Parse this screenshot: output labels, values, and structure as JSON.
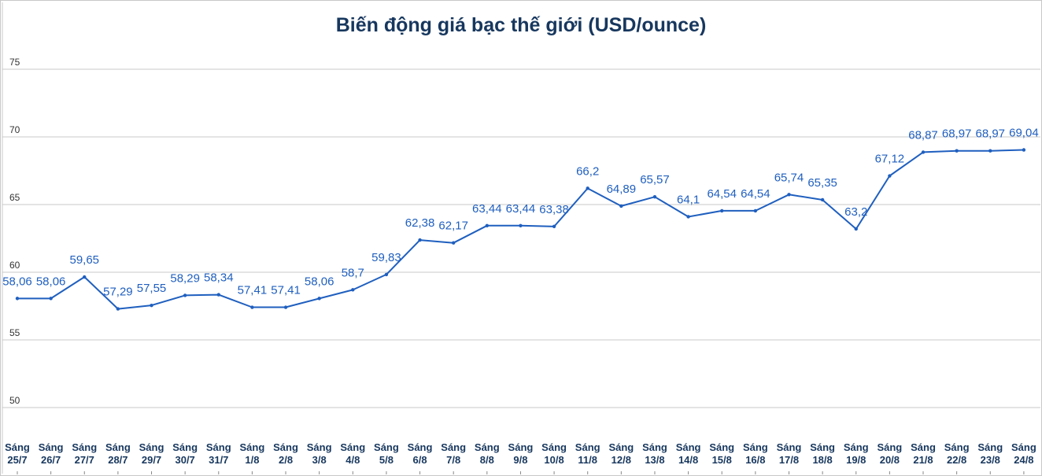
{
  "chart_data": {
    "type": "line",
    "title": "Biến động giá bạc thế giới (USD/ounce)",
    "xlabel": "",
    "ylabel": "",
    "ylim": [
      50,
      75
    ],
    "yticks": [
      50,
      55,
      60,
      65,
      70,
      75
    ],
    "grid": true,
    "line_color": "#1f5fbf",
    "categories": [
      [
        "Sáng",
        "25/7"
      ],
      [
        "Sáng",
        "26/7"
      ],
      [
        "Sáng",
        "27/7"
      ],
      [
        "Sáng",
        "28/7"
      ],
      [
        "Sáng",
        "29/7"
      ],
      [
        "Sáng",
        "30/7"
      ],
      [
        "Sáng",
        "31/7"
      ],
      [
        "Sáng",
        "1/8"
      ],
      [
        "Sáng",
        "2/8"
      ],
      [
        "Sáng",
        "3/8"
      ],
      [
        "Sáng",
        "4/8"
      ],
      [
        "Sáng",
        "5/8"
      ],
      [
        "Sáng",
        "6/8"
      ],
      [
        "Sáng",
        "7/8"
      ],
      [
        "Sáng",
        "8/8"
      ],
      [
        "Sáng",
        "9/8"
      ],
      [
        "Sáng",
        "10/8"
      ],
      [
        "Sáng",
        "11/8"
      ],
      [
        "Sáng",
        "12/8"
      ],
      [
        "Sáng",
        "13/8"
      ],
      [
        "Sáng",
        "14/8"
      ],
      [
        "Sáng",
        "15/8"
      ],
      [
        "Sáng",
        "16/8"
      ],
      [
        "Sáng",
        "17/8"
      ],
      [
        "Sáng",
        "18/8"
      ],
      [
        "Sáng",
        "19/8"
      ],
      [
        "Sáng",
        "20/8"
      ],
      [
        "Sáng",
        "21/8"
      ],
      [
        "Sáng",
        "22/8"
      ],
      [
        "Sáng",
        "23/8"
      ],
      [
        "Sáng",
        "24/8"
      ]
    ],
    "values": [
      58.06,
      58.06,
      59.65,
      57.29,
      57.55,
      58.29,
      58.34,
      57.41,
      57.41,
      58.06,
      58.7,
      59.83,
      62.38,
      62.17,
      63.44,
      63.44,
      63.38,
      66.2,
      64.89,
      65.57,
      64.1,
      64.54,
      64.54,
      65.74,
      65.35,
      63.2,
      67.12,
      68.87,
      68.97,
      68.97,
      69.04
    ],
    "data_labels": [
      "58,06",
      "58,06",
      "59,65",
      "57,29",
      "57,55",
      "58,29",
      "58,34",
      "57,41",
      "57,41",
      "58,06",
      "58,7",
      "59,83",
      "62,38",
      "62,17",
      "63,44",
      "63,44",
      "63,38",
      "66,2",
      "64,89",
      "65,57",
      "64,1",
      "64,54",
      "64,54",
      "65,74",
      "65,35",
      "63,2",
      "67,12",
      "68,87",
      "68,97",
      "68,97",
      "69,04"
    ]
  }
}
